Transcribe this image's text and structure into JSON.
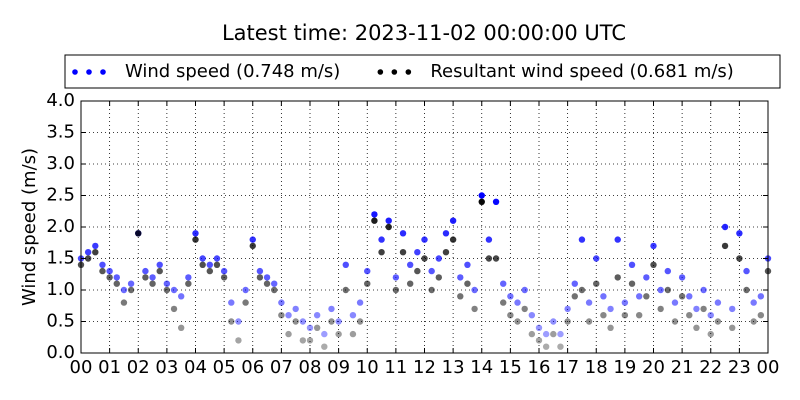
{
  "chart_data": {
    "type": "scatter",
    "title": "Latest time: 2023-11-02 00:00:00 UTC",
    "ylabel": "Wind speed (m/s)",
    "legend": "top",
    "grid": true,
    "x": [
      0,
      0.25,
      0.5,
      0.75,
      1,
      1.25,
      1.5,
      1.75,
      2,
      2.25,
      2.5,
      2.75,
      3,
      3.25,
      3.5,
      3.75,
      4,
      4.25,
      4.5,
      4.75,
      5,
      5.25,
      5.5,
      5.75,
      6,
      6.25,
      6.5,
      6.75,
      7,
      7.25,
      7.5,
      7.75,
      8,
      8.25,
      8.5,
      8.75,
      9,
      9.25,
      9.5,
      9.75,
      10,
      10.25,
      10.5,
      10.75,
      11,
      11.25,
      11.5,
      11.75,
      12,
      12.25,
      12.5,
      12.75,
      13,
      13.25,
      13.5,
      13.75,
      14,
      14.25,
      14.5,
      14.75,
      15,
      15.25,
      15.5,
      15.75,
      16,
      16.25,
      16.5,
      16.75,
      17,
      17.25,
      17.5,
      17.75,
      18,
      18.25,
      18.5,
      18.75,
      19,
      19.25,
      19.5,
      19.75,
      20,
      20.25,
      20.5,
      20.75,
      21,
      21.25,
      21.5,
      21.75,
      22,
      22.25,
      22.5,
      22.75,
      23,
      23.25,
      23.5,
      23.75,
      24
    ],
    "series": [
      {
        "name": "Wind speed (0.748 m/s)",
        "color": "#0000ff",
        "values": [
          1.5,
          1.6,
          1.7,
          1.4,
          1.3,
          1.2,
          1.0,
          1.1,
          1.9,
          1.3,
          1.2,
          1.4,
          1.1,
          1.0,
          0.9,
          1.2,
          1.9,
          1.5,
          1.4,
          1.5,
          1.3,
          0.8,
          0.5,
          1.0,
          1.8,
          1.3,
          1.2,
          1.1,
          0.8,
          0.6,
          0.7,
          0.5,
          0.4,
          0.6,
          0.3,
          0.7,
          0.5,
          1.4,
          0.6,
          0.8,
          1.3,
          2.2,
          1.8,
          2.1,
          1.2,
          1.9,
          1.4,
          1.6,
          1.8,
          1.3,
          1.5,
          1.9,
          2.1,
          1.2,
          1.4,
          1.0,
          2.5,
          1.8,
          2.4,
          1.1,
          0.9,
          0.8,
          1.0,
          0.6,
          0.4,
          0.3,
          0.5,
          0.3,
          0.7,
          1.1,
          1.8,
          0.8,
          1.5,
          0.9,
          0.7,
          1.8,
          0.8,
          1.4,
          0.9,
          1.2,
          1.7,
          1.0,
          1.3,
          0.8,
          1.2,
          0.9,
          0.7,
          1.0,
          0.6,
          0.8,
          2.0,
          0.7,
          1.9,
          1.3,
          0.8,
          0.9,
          1.5
        ]
      },
      {
        "name": "Resultant wind speed (0.681 m/s)",
        "color": "#000000",
        "values": [
          1.4,
          1.5,
          1.6,
          1.3,
          1.2,
          1.1,
          0.8,
          1.0,
          1.9,
          1.2,
          1.1,
          1.3,
          1.0,
          0.7,
          0.4,
          1.1,
          1.8,
          1.4,
          1.3,
          1.4,
          1.2,
          0.5,
          0.2,
          0.8,
          1.7,
          1.2,
          1.1,
          1.0,
          0.6,
          0.3,
          0.5,
          0.2,
          0.2,
          0.4,
          0.1,
          0.5,
          0.3,
          1.0,
          0.3,
          0.5,
          1.1,
          2.1,
          1.6,
          2.0,
          1.0,
          1.6,
          1.1,
          1.3,
          1.5,
          1.0,
          1.2,
          1.6,
          1.8,
          0.9,
          1.1,
          0.7,
          2.4,
          1.5,
          1.5,
          0.8,
          0.6,
          0.5,
          0.7,
          0.3,
          0.2,
          0.1,
          0.3,
          0.1,
          0.5,
          0.9,
          1.0,
          0.5,
          1.1,
          0.6,
          0.4,
          1.2,
          0.6,
          1.1,
          0.6,
          0.9,
          1.4,
          0.7,
          1.0,
          0.5,
          0.9,
          0.6,
          0.4,
          0.7,
          0.3,
          0.5,
          1.7,
          0.4,
          1.5,
          1.0,
          0.5,
          0.6,
          1.3
        ]
      }
    ],
    "xlim": [
      0,
      24
    ],
    "xticks": [
      {
        "value": 0,
        "label": "00"
      },
      {
        "value": 1,
        "label": "01"
      },
      {
        "value": 2,
        "label": "02"
      },
      {
        "value": 3,
        "label": "03"
      },
      {
        "value": 4,
        "label": "04"
      },
      {
        "value": 5,
        "label": "05"
      },
      {
        "value": 6,
        "label": "06"
      },
      {
        "value": 7,
        "label": "07"
      },
      {
        "value": 8,
        "label": "08"
      },
      {
        "value": 9,
        "label": "09"
      },
      {
        "value": 10,
        "label": "10"
      },
      {
        "value": 11,
        "label": "11"
      },
      {
        "value": 12,
        "label": "12"
      },
      {
        "value": 13,
        "label": "13"
      },
      {
        "value": 14,
        "label": "14"
      },
      {
        "value": 15,
        "label": "15"
      },
      {
        "value": 16,
        "label": "16"
      },
      {
        "value": 17,
        "label": "17"
      },
      {
        "value": 18,
        "label": "18"
      },
      {
        "value": 19,
        "label": "19"
      },
      {
        "value": 20,
        "label": "20"
      },
      {
        "value": 21,
        "label": "21"
      },
      {
        "value": 22,
        "label": "22"
      },
      {
        "value": 23,
        "label": "23"
      },
      {
        "value": 24,
        "label": "00"
      }
    ],
    "ylim": [
      0,
      4
    ],
    "yticks": [
      {
        "value": 0,
        "label": "0.0"
      },
      {
        "value": 0.5,
        "label": "0.5"
      },
      {
        "value": 1,
        "label": "1.0"
      },
      {
        "value": 1.5,
        "label": "1.5"
      },
      {
        "value": 2,
        "label": "2.0"
      },
      {
        "value": 2.5,
        "label": "2.5"
      },
      {
        "value": 3,
        "label": "3.0"
      },
      {
        "value": 3.5,
        "label": "3.5"
      },
      {
        "value": 4,
        "label": "4.0"
      }
    ]
  }
}
